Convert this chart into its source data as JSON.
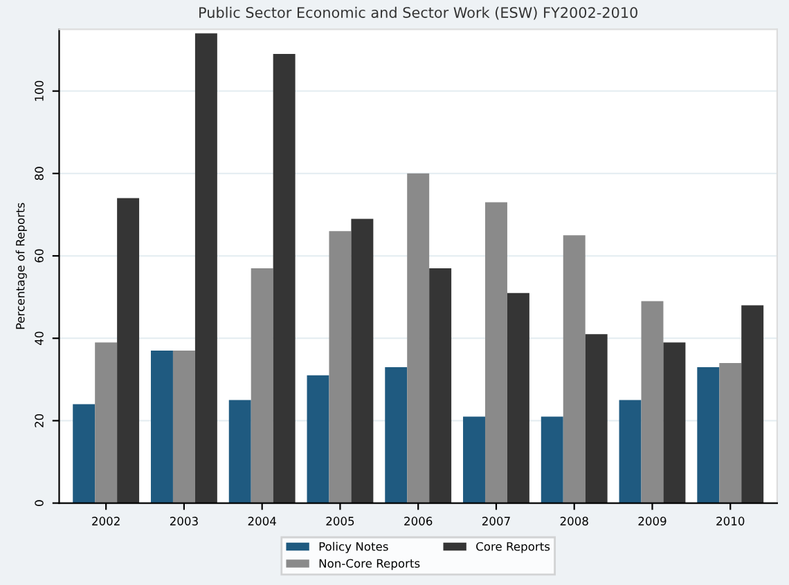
{
  "chart_data": {
    "type": "bar",
    "title": "Public Sector Economic and Sector Work (ESW) FY2002-2010",
    "ylabel": "Percentage of Reports",
    "categories": [
      "2002",
      "2003",
      "2004",
      "2005",
      "2006",
      "2007",
      "2008",
      "2009",
      "2010"
    ],
    "series": [
      {
        "name": "Policy Notes",
        "color": "#1f5a80",
        "values": [
          24,
          37,
          25,
          31,
          33,
          21,
          21,
          25,
          33
        ]
      },
      {
        "name": "Non-Core Reports",
        "color": "#8a8a8a",
        "values": [
          39,
          37,
          57,
          66,
          80,
          73,
          65,
          49,
          34
        ]
      },
      {
        "name": "Core Reports",
        "color": "#353535",
        "values": [
          74,
          114,
          109,
          69,
          57,
          51,
          41,
          39,
          48
        ]
      }
    ],
    "ylim": [
      0,
      115
    ],
    "yticks": [
      0,
      20,
      40,
      60,
      80,
      100
    ],
    "grid": "y",
    "legend": "bottom"
  }
}
